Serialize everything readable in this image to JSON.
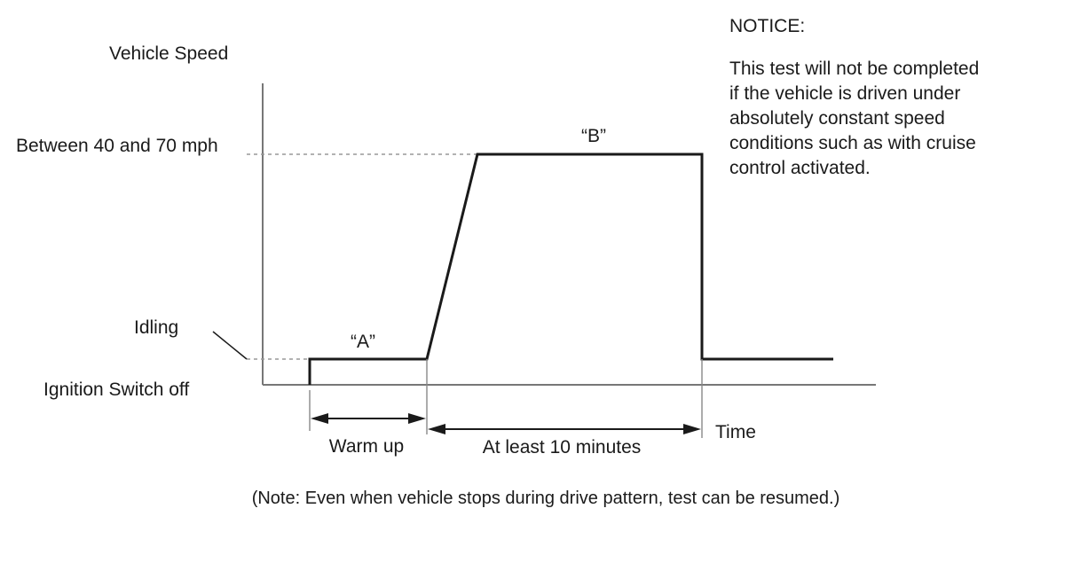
{
  "labels": {
    "y_axis_title": "Vehicle Speed",
    "speed_level": "Between 40 and 70 mph",
    "idling": "Idling",
    "ignition_off": "Ignition Switch off",
    "segment_a": "“A”",
    "segment_b": "“B”",
    "warm_up": "Warm up",
    "at_least": "At least 10 minutes",
    "time": "Time"
  },
  "notice": {
    "heading": "NOTICE:",
    "lines": [
      "This test will not be completed",
      "if the vehicle is driven under",
      "absolutely constant speed",
      "conditions such as with cruise",
      "control activated."
    ]
  },
  "note": "(Note: Even when vehicle stops during drive pattern, test can be resumed.)"
}
